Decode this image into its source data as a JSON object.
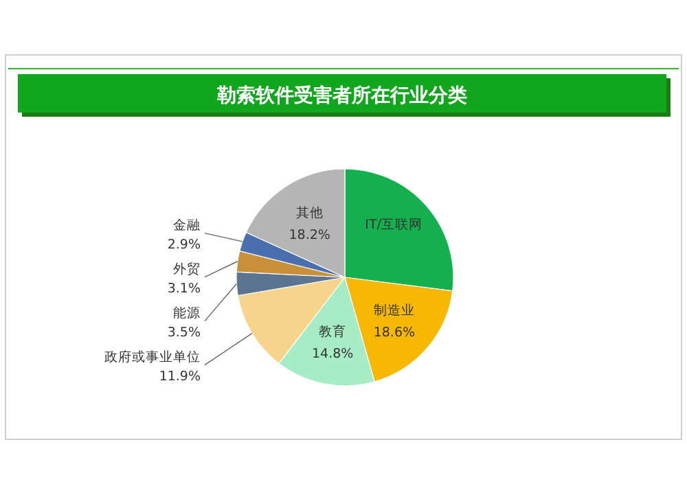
{
  "chart_data": {
    "type": "pie",
    "title": "勒索软件受害者所在行业分类",
    "categories": [
      "IT/互联网",
      "制造业",
      "教育",
      "政府或事业单位",
      "能源",
      "外贸",
      "金融",
      "其他"
    ],
    "values": [
      27.0,
      18.6,
      14.8,
      11.9,
      3.5,
      3.1,
      2.9,
      18.2
    ],
    "value_labels": [
      null,
      "18.6%",
      "14.8%",
      "11.9%",
      "3.5%",
      "3.1%",
      "2.9%",
      "18.2%"
    ],
    "colors": [
      "#14b04e",
      "#f6b800",
      "#a6edc6",
      "#f7d48c",
      "#5b7490",
      "#c9903a",
      "#4a6fae",
      "#b5b5b5"
    ]
  }
}
